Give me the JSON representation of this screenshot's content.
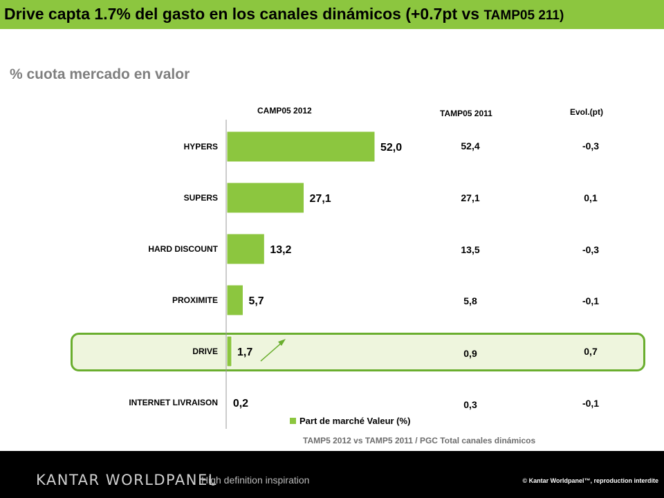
{
  "title": {
    "main": "Drive capta 1.7% del gasto en los canales dinámicos (+0.7pt vs ",
    "tail": "TAMP05 211)"
  },
  "subtitle": "% cuota mercado en valor",
  "columns": {
    "current": "CAMP05 2012",
    "previous": "TAMP05 2011",
    "evol": "Evol.(pt)"
  },
  "highlight_color": "#6aae2e",
  "bar_color": "#8cc63f",
  "chart_data": {
    "type": "bar",
    "orientation": "horizontal",
    "categories": [
      "HYPERS",
      "SUPERS",
      "HARD DISCOUNT",
      "PROXIMITE",
      "DRIVE",
      "INTERNET LIVRAISON"
    ],
    "series": [
      {
        "name": "Part de marché Valeur (%)",
        "values": [
          52.0,
          27.1,
          13.2,
          5.7,
          1.7,
          0.2
        ]
      }
    ],
    "value_labels": [
      "52,0",
      "27,1",
      "13,2",
      "5,7",
      "1,7",
      "0,2"
    ],
    "xlim": [
      0,
      55
    ],
    "legend": "bottom-right"
  },
  "table": {
    "previous": [
      "52,4",
      "27,1",
      "13,5",
      "5,8",
      "0,9",
      "0,3"
    ],
    "evol": [
      "-0,3",
      "0,1",
      "-0,3",
      "-0,1",
      "0,7",
      "-0,1"
    ]
  },
  "footnote": "TAMP5 2012 vs TAMP5 2011 / PGC Total canales dinámicos",
  "footer": {
    "brand": "KANTAR WORLDPANEL",
    "tagline": "High definition inspiration",
    "copyright": "© Kantar Worldpanel™, reproduction interdite"
  }
}
